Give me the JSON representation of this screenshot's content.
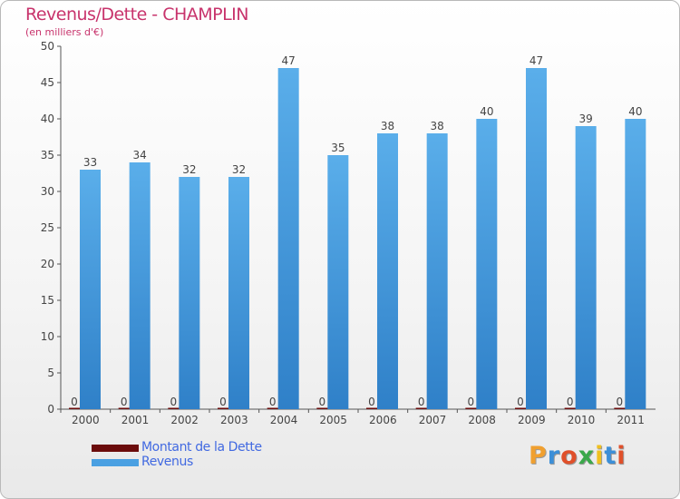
{
  "header": {
    "title": "Revenus/Dette - CHAMPLIN",
    "subtitle": "(en milliers d'€)"
  },
  "chart_data": {
    "type": "bar",
    "categories": [
      "2000",
      "2001",
      "2002",
      "2003",
      "2004",
      "2005",
      "2006",
      "2007",
      "2008",
      "2009",
      "2010",
      "2011"
    ],
    "series": [
      {
        "name": "Montant de la Dette",
        "color": "#6b0c0c",
        "values": [
          0,
          0,
          0,
          0,
          0,
          0,
          0,
          0,
          0,
          0,
          0,
          0
        ]
      },
      {
        "name": "Revenus",
        "color": "#4aa0e2",
        "values": [
          33,
          34,
          32,
          32,
          47,
          35,
          38,
          38,
          40,
          47,
          39,
          40
        ]
      }
    ],
    "ylim": [
      0,
      50
    ],
    "yticks": [
      0,
      5,
      10,
      15,
      20,
      25,
      30,
      35,
      40,
      45,
      50
    ],
    "grid": false,
    "legend": "bottom-left"
  },
  "logo": {
    "letters": [
      "P",
      "r",
      "o",
      "x",
      "i",
      "t",
      "i"
    ],
    "colors": [
      "#f0a030",
      "#3c8fd8",
      "#e0502a",
      "#3aa84a",
      "#f0c020",
      "#3c8fd8",
      "#e0502a"
    ]
  }
}
